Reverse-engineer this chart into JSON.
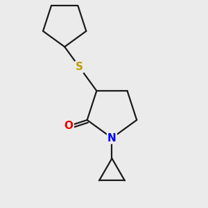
{
  "background_color": "#ebebeb",
  "line_color": "#1a1a1a",
  "S_color": "#b8a000",
  "N_color": "#0000ee",
  "O_color": "#ee0000",
  "line_width": 1.6,
  "figsize": [
    3.0,
    3.0
  ],
  "dpi": 100,
  "xlim": [
    0.15,
    0.85
  ],
  "ylim": [
    0.05,
    0.95
  ]
}
